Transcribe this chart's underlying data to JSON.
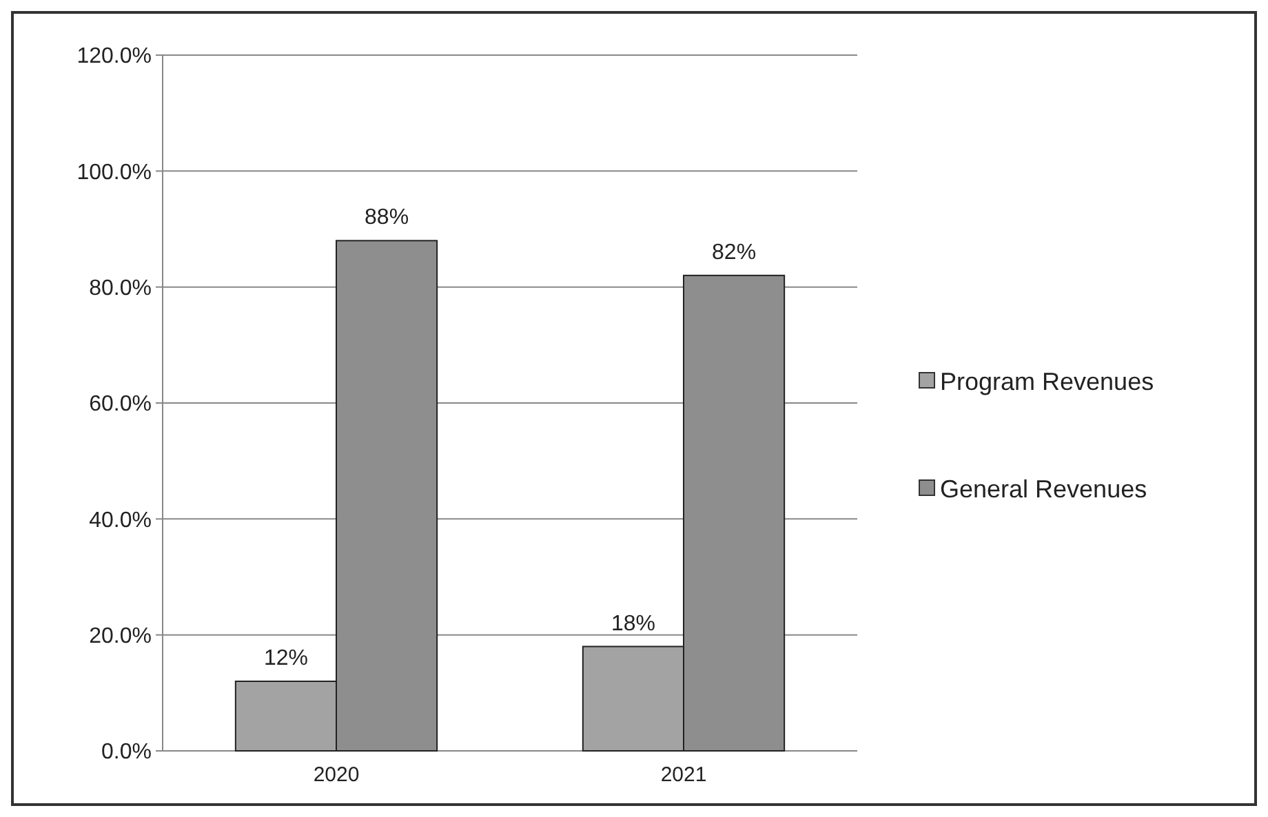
{
  "chart_data": {
    "type": "bar",
    "categories": [
      "2020",
      "2021"
    ],
    "series": [
      {
        "name": "Program Revenues",
        "color": "#a3a3a3",
        "values": [
          12,
          18
        ],
        "value_labels": [
          "12%",
          "18%"
        ]
      },
      {
        "name": "General Revenues",
        "color": "#8e8e8e",
        "values": [
          88,
          82
        ],
        "value_labels": [
          "88%",
          "82%"
        ]
      }
    ],
    "ylim": [
      0,
      120
    ],
    "yticks": [
      {
        "value": 0,
        "label": "0.0%"
      },
      {
        "value": 20,
        "label": "20.0%"
      },
      {
        "value": 40,
        "label": "40.0%"
      },
      {
        "value": 60,
        "label": "60.0%"
      },
      {
        "value": 80,
        "label": "80.0%"
      },
      {
        "value": 100,
        "label": "100.0%"
      },
      {
        "value": 120,
        "label": "120.0%"
      }
    ],
    "grid": "y",
    "legend": "right"
  }
}
